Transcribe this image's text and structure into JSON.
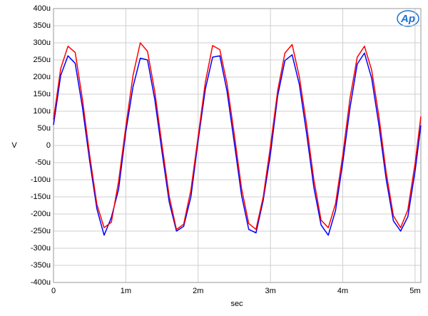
{
  "chart_data": {
    "type": "line",
    "x_label": "sec",
    "y_label": "V",
    "logo": "Ap",
    "grid": true,
    "xlim": [
      0,
      0.00508
    ],
    "ylim": [
      -0.0004,
      0.0004
    ],
    "xticks": [
      0,
      {
        "value": 0.001,
        "label": "1m"
      },
      {
        "value": 0.002,
        "label": "2m"
      },
      {
        "value": 0.003,
        "label": "3m"
      },
      {
        "value": 0.004,
        "label": "4m"
      },
      {
        "value": 0.005,
        "label": "5m"
      }
    ],
    "yticks": [
      {
        "value": -0.0004,
        "label": "-400u"
      },
      {
        "value": -0.00035,
        "label": "-350u"
      },
      {
        "value": -0.0003,
        "label": "-300u"
      },
      {
        "value": -0.00025,
        "label": "-250u"
      },
      {
        "value": -0.0002,
        "label": "-200u"
      },
      {
        "value": -0.00015,
        "label": "-150u"
      },
      {
        "value": -0.0001,
        "label": "-100u"
      },
      {
        "value": -5e-05,
        "label": "-50u"
      },
      0,
      {
        "value": 5e-05,
        "label": "50u"
      },
      {
        "value": 0.0001,
        "label": "100u"
      },
      {
        "value": 0.00015,
        "label": "150u"
      },
      {
        "value": 0.0002,
        "label": "200u"
      },
      {
        "value": 0.00025,
        "label": "250u"
      },
      {
        "value": 0.0003,
        "label": "300u"
      },
      {
        "value": 0.00035,
        "label": "350u"
      },
      {
        "value": 0.0004,
        "label": "400u"
      }
    ],
    "x": [
      0,
      0.0001,
      0.0002,
      0.0003,
      0.0004,
      0.0005,
      0.0006,
      0.0007,
      0.0008,
      0.0009,
      0.001,
      0.0011,
      0.0012,
      0.0013,
      0.0014,
      0.0015,
      0.0016,
      0.0017,
      0.0018,
      0.0019,
      0.002,
      0.0021,
      0.0022,
      0.0023,
      0.0024,
      0.0025,
      0.0026,
      0.0027,
      0.0028,
      0.0029,
      0.003,
      0.0031,
      0.0032,
      0.0033,
      0.0034,
      0.0035,
      0.0036,
      0.0037,
      0.0038,
      0.0039,
      0.004,
      0.0041,
      0.0042,
      0.0043,
      0.0044,
      0.0045,
      0.0046,
      0.0047,
      0.0048,
      0.0049,
      0.005,
      0.00508
    ],
    "series": [
      {
        "color": "#0000ff",
        "values": [
          6e-05,
          0.000205,
          0.000262,
          0.00024,
          0.000112,
          -4.5e-05,
          -0.000185,
          -0.000262,
          -0.00021,
          -0.000128,
          4e-05,
          0.000172,
          0.000255,
          0.00025,
          0.000135,
          -1.8e-05,
          -0.000165,
          -0.00025,
          -0.000236,
          -0.00015,
          1.4e-05,
          0.000165,
          0.000258,
          0.000262,
          0.000158,
          8e-06,
          -0.000145,
          -0.000245,
          -0.000255,
          -0.00016,
          -2.5e-05,
          0.000145,
          0.000248,
          0.000265,
          0.000178,
          3.5e-05,
          -0.000122,
          -0.000232,
          -0.000262,
          -0.00019,
          -5e-05,
          0.00011,
          0.000238,
          0.00027,
          0.000196,
          6e-05,
          -9.8e-05,
          -0.00022,
          -0.00025,
          -0.000208,
          -7.5e-05,
          5.9e-05
        ]
      },
      {
        "color": "#ff0000",
        "values": [
          7.6e-05,
          0.000225,
          0.00029,
          0.000272,
          0.000135,
          -2.8e-05,
          -0.000172,
          -0.00024,
          -0.000224,
          -0.000105,
          5.5e-05,
          0.000205,
          0.0003,
          0.000275,
          0.000158,
          2e-06,
          -0.000148,
          -0.000245,
          -0.00023,
          -0.00013,
          2.6e-05,
          0.000185,
          0.000292,
          0.00028,
          0.00018,
          3.2e-05,
          -0.000125,
          -0.000228,
          -0.000245,
          -0.00015,
          -2e-06,
          0.00016,
          0.00027,
          0.000295,
          0.0002,
          6e-05,
          -0.0001,
          -0.000218,
          -0.00024,
          -0.00017,
          -2.8e-05,
          0.000138,
          0.000258,
          0.00029,
          0.00022,
          8.5e-05,
          -7.8e-05,
          -0.000205,
          -0.00024,
          -0.000188,
          -5.2e-05,
          8.5e-05
        ]
      }
    ]
  }
}
